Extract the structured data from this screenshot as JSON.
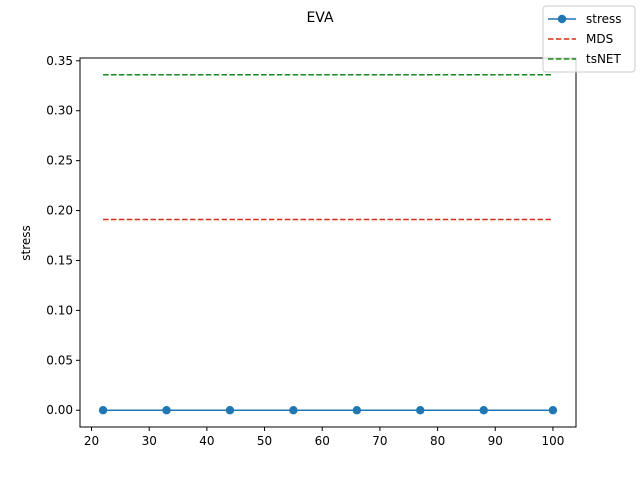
{
  "chart_data": {
    "type": "line",
    "title": "EVA",
    "xlabel": "",
    "ylabel": "stress",
    "xlim": [
      18,
      104
    ],
    "ylim": [
      -0.0168,
      0.3528
    ],
    "xticks": [
      20,
      30,
      40,
      50,
      60,
      70,
      80,
      90,
      100
    ],
    "yticks": [
      0.0,
      0.05,
      0.1,
      0.15,
      0.2,
      0.25,
      0.3,
      0.35
    ],
    "ytick_labels": [
      "0.00",
      "0.05",
      "0.10",
      "0.15",
      "0.20",
      "0.25",
      "0.30",
      "0.35"
    ],
    "grid": false,
    "legend_position": "top-right",
    "series": [
      {
        "name": "stress",
        "style": "solid",
        "marker": "circle",
        "color": "#1f77b4",
        "x": [
          22,
          33,
          44,
          55,
          66,
          77,
          88,
          100
        ],
        "y": [
          0.0,
          0.0,
          0.0,
          0.0,
          0.0,
          0.0,
          0.0,
          0.0
        ]
      },
      {
        "name": "MDS",
        "style": "dashed",
        "color": "#d62f1a",
        "x": [
          22,
          100
        ],
        "y": [
          0.191,
          0.191
        ]
      },
      {
        "name": "tsNET",
        "style": "dashed",
        "color": "#168a16",
        "x": [
          22,
          100
        ],
        "y": [
          0.336,
          0.336
        ]
      }
    ]
  }
}
